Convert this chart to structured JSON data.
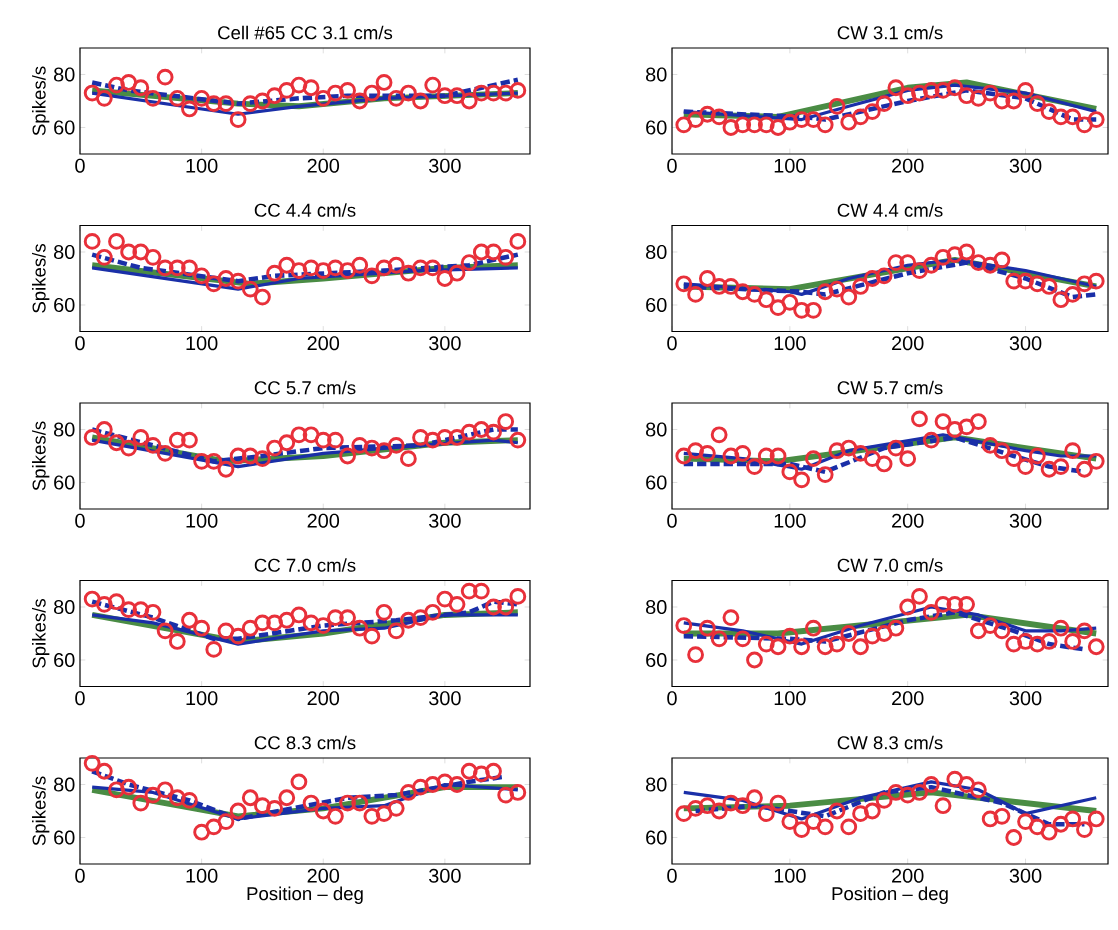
{
  "chart_data": [
    {
      "type": "line",
      "title": "Cell #65 CC 3.1 cm/s",
      "ylabel": "Spikes/s",
      "xlim": [
        0,
        370
      ],
      "ylim": [
        50,
        90
      ],
      "xticks": [
        0,
        100,
        200,
        300
      ],
      "yticks": [
        60,
        80
      ],
      "x": [
        10,
        20,
        30,
        40,
        50,
        60,
        70,
        80,
        90,
        100,
        110,
        120,
        130,
        140,
        150,
        160,
        170,
        180,
        190,
        200,
        210,
        220,
        230,
        240,
        250,
        260,
        270,
        280,
        290,
        300,
        310,
        320,
        330,
        340,
        350,
        360
      ],
      "series": [
        {
          "type": "scatter",
          "marker": "circle",
          "color": "#e8303a",
          "values": [
            73,
            71,
            76,
            77,
            75,
            71,
            79,
            71,
            67,
            71,
            69,
            69,
            63,
            69,
            70,
            72,
            74,
            76,
            75,
            71,
            73,
            74,
            70,
            73,
            77,
            71,
            73,
            70,
            76,
            72,
            72,
            70,
            73,
            73,
            73,
            74
          ]
        },
        {
          "type": "line",
          "line_style": "solid",
          "color": "#4a8c44",
          "x": [
            10,
            130,
            180,
            250,
            360
          ],
          "values": [
            74,
            69,
            68,
            71,
            73
          ]
        },
        {
          "type": "line",
          "line_style": "dashed",
          "color": "#1a2fa8",
          "x": [
            10,
            40,
            130,
            180,
            220,
            300,
            360
          ],
          "values": [
            77,
            74,
            69,
            71,
            72,
            72,
            78
          ]
        },
        {
          "type": "line",
          "line_style": "solid",
          "color": "#1a2fa8",
          "x": [
            10,
            130,
            180,
            250,
            360
          ],
          "values": [
            73,
            65,
            68,
            71,
            73
          ]
        }
      ]
    },
    {
      "type": "line",
      "title": "CW 3.1 cm/s",
      "xlim": [
        0,
        370
      ],
      "ylim": [
        50,
        90
      ],
      "xticks": [
        0,
        100,
        200,
        300
      ],
      "yticks": [
        60,
        80
      ],
      "x": [
        10,
        20,
        30,
        40,
        50,
        60,
        70,
        80,
        90,
        100,
        110,
        120,
        130,
        140,
        150,
        160,
        170,
        180,
        190,
        200,
        210,
        220,
        230,
        240,
        250,
        260,
        270,
        280,
        290,
        300,
        310,
        320,
        330,
        340,
        350,
        360
      ],
      "series": [
        {
          "type": "scatter",
          "marker": "circle",
          "color": "#e8303a",
          "values": [
            61,
            63,
            65,
            64,
            60,
            61,
            61,
            61,
            60,
            62,
            63,
            63,
            61,
            68,
            62,
            64,
            66,
            69,
            75,
            72,
            73,
            74,
            74,
            75,
            72,
            71,
            73,
            70,
            70,
            74,
            69,
            66,
            64,
            64,
            61,
            63
          ]
        },
        {
          "type": "line",
          "line_style": "solid",
          "color": "#4a8c44",
          "x": [
            10,
            90,
            200,
            250,
            360
          ],
          "values": [
            65,
            64,
            75,
            77,
            67
          ]
        },
        {
          "type": "line",
          "line_style": "dashed",
          "color": "#1a2fa8",
          "x": [
            10,
            110,
            130,
            200,
            250,
            300,
            340,
            360
          ],
          "values": [
            66,
            64,
            63,
            70,
            74,
            71,
            63,
            63
          ]
        },
        {
          "type": "line",
          "line_style": "solid",
          "color": "#1a2fa8",
          "x": [
            10,
            110,
            150,
            200,
            240,
            300,
            360
          ],
          "values": [
            66,
            63,
            68,
            74,
            76,
            73,
            66
          ]
        }
      ]
    },
    {
      "type": "line",
      "title": "CC 4.4 cm/s",
      "ylabel": "Spikes/s",
      "xlim": [
        0,
        370
      ],
      "ylim": [
        50,
        90
      ],
      "xticks": [
        0,
        100,
        200,
        300
      ],
      "yticks": [
        60,
        80
      ],
      "x": [
        10,
        20,
        30,
        40,
        50,
        60,
        70,
        80,
        90,
        100,
        110,
        120,
        130,
        140,
        150,
        160,
        170,
        180,
        190,
        200,
        210,
        220,
        230,
        240,
        250,
        260,
        270,
        280,
        290,
        300,
        310,
        320,
        330,
        340,
        350,
        360
      ],
      "series": [
        {
          "type": "scatter",
          "marker": "circle",
          "color": "#e8303a",
          "values": [
            84,
            78,
            84,
            80,
            80,
            78,
            74,
            74,
            74,
            71,
            68,
            70,
            69,
            66,
            63,
            72,
            75,
            73,
            74,
            73,
            74,
            73,
            75,
            71,
            74,
            75,
            72,
            74,
            74,
            70,
            72,
            76,
            80,
            80,
            78,
            84
          ]
        },
        {
          "type": "line",
          "line_style": "solid",
          "color": "#4a8c44",
          "x": [
            10,
            140,
            200,
            300,
            360
          ],
          "values": [
            75,
            68,
            70,
            74,
            75
          ]
        },
        {
          "type": "line",
          "line_style": "dashed",
          "color": "#1a2fa8",
          "x": [
            10,
            50,
            130,
            160,
            250,
            320,
            360
          ],
          "values": [
            79,
            74,
            69,
            71,
            73,
            75,
            79
          ]
        },
        {
          "type": "line",
          "line_style": "solid",
          "color": "#1a2fa8",
          "x": [
            10,
            130,
            180,
            280,
            360
          ],
          "values": [
            74,
            66,
            70,
            73,
            74
          ]
        }
      ]
    },
    {
      "type": "line",
      "title": "CW 4.4 cm/s",
      "xlim": [
        0,
        370
      ],
      "ylim": [
        50,
        90
      ],
      "xticks": [
        0,
        100,
        200,
        300
      ],
      "yticks": [
        60,
        80
      ],
      "x": [
        10,
        20,
        30,
        40,
        50,
        60,
        70,
        80,
        90,
        100,
        110,
        120,
        130,
        140,
        150,
        160,
        170,
        180,
        190,
        200,
        210,
        220,
        230,
        240,
        250,
        260,
        270,
        280,
        290,
        300,
        310,
        320,
        330,
        340,
        350,
        360
      ],
      "series": [
        {
          "type": "scatter",
          "marker": "circle",
          "color": "#e8303a",
          "values": [
            68,
            64,
            70,
            67,
            67,
            65,
            64,
            62,
            59,
            61,
            58,
            58,
            65,
            66,
            63,
            67,
            70,
            71,
            76,
            76,
            73,
            75,
            78,
            79,
            80,
            76,
            75,
            77,
            69,
            69,
            68,
            67,
            62,
            64,
            68,
            69
          ]
        },
        {
          "type": "line",
          "line_style": "solid",
          "color": "#4a8c44",
          "x": [
            10,
            100,
            240,
            360
          ],
          "values": [
            67,
            66,
            77,
            67
          ]
        },
        {
          "type": "line",
          "line_style": "dashed",
          "color": "#1a2fa8",
          "x": [
            10,
            110,
            130,
            200,
            250,
            300,
            340,
            360
          ],
          "values": [
            67,
            65,
            64,
            72,
            76,
            70,
            63,
            64
          ]
        },
        {
          "type": "line",
          "line_style": "solid",
          "color": "#1a2fa8",
          "x": [
            10,
            100,
            110,
            150,
            200,
            240,
            300,
            360
          ],
          "values": [
            68,
            65,
            64,
            70,
            75,
            77,
            73,
            67
          ]
        }
      ]
    },
    {
      "type": "line",
      "title": "CC 5.7 cm/s",
      "ylabel": "Spikes/s",
      "xlim": [
        0,
        370
      ],
      "ylim": [
        50,
        90
      ],
      "xticks": [
        0,
        100,
        200,
        300
      ],
      "yticks": [
        60,
        80
      ],
      "x": [
        10,
        20,
        30,
        40,
        50,
        60,
        70,
        80,
        90,
        100,
        110,
        120,
        130,
        140,
        150,
        160,
        170,
        180,
        190,
        200,
        210,
        220,
        230,
        240,
        250,
        260,
        270,
        280,
        290,
        300,
        310,
        320,
        330,
        340,
        350,
        360
      ],
      "series": [
        {
          "type": "scatter",
          "marker": "circle",
          "color": "#e8303a",
          "values": [
            77,
            80,
            75,
            73,
            77,
            74,
            71,
            76,
            76,
            68,
            68,
            65,
            70,
            70,
            69,
            73,
            75,
            78,
            78,
            76,
            76,
            70,
            74,
            73,
            72,
            74,
            69,
            77,
            76,
            77,
            77,
            79,
            80,
            79,
            83,
            76
          ]
        },
        {
          "type": "line",
          "line_style": "solid",
          "color": "#4a8c44",
          "x": [
            10,
            120,
            200,
            300,
            360
          ],
          "values": [
            77,
            68,
            70,
            75,
            76
          ]
        },
        {
          "type": "line",
          "line_style": "dashed",
          "color": "#1a2fa8",
          "x": [
            10,
            60,
            110,
            150,
            200,
            280,
            340,
            360
          ],
          "values": [
            80,
            74,
            68,
            70,
            73,
            74,
            80,
            80
          ]
        },
        {
          "type": "line",
          "line_style": "solid",
          "color": "#1a2fa8",
          "x": [
            10,
            130,
            200,
            280,
            340,
            360
          ],
          "values": [
            76,
            66,
            71,
            74,
            76,
            75
          ]
        }
      ]
    },
    {
      "type": "line",
      "title": "CW 5.7 cm/s",
      "xlim": [
        0,
        370
      ],
      "ylim": [
        50,
        90
      ],
      "xticks": [
        0,
        100,
        200,
        300
      ],
      "yticks": [
        60,
        80
      ],
      "x": [
        10,
        20,
        30,
        40,
        50,
        60,
        70,
        80,
        90,
        100,
        110,
        120,
        130,
        140,
        150,
        160,
        170,
        180,
        190,
        200,
        210,
        220,
        230,
        240,
        250,
        260,
        270,
        280,
        290,
        300,
        310,
        320,
        330,
        340,
        350,
        360
      ],
      "series": [
        {
          "type": "scatter",
          "marker": "circle",
          "color": "#e8303a",
          "values": [
            70,
            72,
            71,
            78,
            70,
            71,
            66,
            70,
            70,
            64,
            61,
            69,
            63,
            72,
            73,
            71,
            69,
            67,
            73,
            69,
            84,
            76,
            83,
            80,
            81,
            83,
            74,
            72,
            69,
            66,
            70,
            65,
            66,
            72,
            65,
            68
          ]
        },
        {
          "type": "line",
          "line_style": "solid",
          "color": "#4a8c44",
          "x": [
            10,
            90,
            240,
            360
          ],
          "values": [
            69,
            68,
            77,
            69
          ]
        },
        {
          "type": "line",
          "line_style": "dashed",
          "color": "#1a2fa8",
          "x": [
            10,
            100,
            130,
            180,
            240,
            290,
            320,
            350
          ],
          "values": [
            67,
            67,
            64,
            73,
            77,
            70,
            66,
            64
          ]
        },
        {
          "type": "line",
          "line_style": "solid",
          "color": "#1a2fa8",
          "x": [
            10,
            60,
            110,
            150,
            230,
            300,
            330,
            360
          ],
          "values": [
            71,
            69,
            65,
            72,
            78,
            72,
            70,
            70
          ]
        }
      ]
    },
    {
      "type": "line",
      "title": "CC 7.0 cm/s",
      "ylabel": "Spikes/s",
      "xlim": [
        0,
        370
      ],
      "ylim": [
        50,
        90
      ],
      "xticks": [
        0,
        100,
        200,
        300
      ],
      "yticks": [
        60,
        80
      ],
      "x": [
        10,
        20,
        30,
        40,
        50,
        60,
        70,
        80,
        90,
        100,
        110,
        120,
        130,
        140,
        150,
        160,
        170,
        180,
        190,
        200,
        210,
        220,
        230,
        240,
        250,
        260,
        270,
        280,
        290,
        300,
        310,
        320,
        330,
        340,
        350,
        360
      ],
      "series": [
        {
          "type": "scatter",
          "marker": "circle",
          "color": "#e8303a",
          "values": [
            83,
            81,
            82,
            79,
            79,
            78,
            71,
            67,
            75,
            72,
            64,
            71,
            69,
            72,
            74,
            74,
            75,
            77,
            74,
            73,
            76,
            76,
            72,
            69,
            78,
            71,
            75,
            76,
            78,
            83,
            81,
            86,
            86,
            80,
            80,
            84
          ]
        },
        {
          "type": "line",
          "line_style": "solid",
          "color": "#4a8c44",
          "x": [
            10,
            130,
            200,
            300,
            360
          ],
          "values": [
            77,
            67,
            70,
            77,
            78
          ]
        },
        {
          "type": "line",
          "line_style": "dashed",
          "color": "#1a2fa8",
          "x": [
            10,
            60,
            110,
            130,
            200,
            260,
            320,
            340,
            360
          ],
          "values": [
            82,
            76,
            68,
            68,
            73,
            75,
            78,
            82,
            81
          ]
        },
        {
          "type": "line",
          "line_style": "solid",
          "color": "#1a2fa8",
          "x": [
            10,
            60,
            130,
            200,
            250,
            300,
            360
          ],
          "values": [
            77,
            74,
            66,
            71,
            72,
            77,
            77
          ]
        }
      ]
    },
    {
      "type": "line",
      "title": "CW 7.0 cm/s",
      "xlim": [
        0,
        370
      ],
      "ylim": [
        50,
        90
      ],
      "xticks": [
        0,
        100,
        200,
        300
      ],
      "yticks": [
        60,
        80
      ],
      "x": [
        10,
        20,
        30,
        40,
        50,
        60,
        70,
        80,
        90,
        100,
        110,
        120,
        130,
        140,
        150,
        160,
        170,
        180,
        190,
        200,
        210,
        220,
        230,
        240,
        250,
        260,
        270,
        280,
        290,
        300,
        310,
        320,
        330,
        340,
        350,
        360
      ],
      "series": [
        {
          "type": "scatter",
          "marker": "circle",
          "color": "#e8303a",
          "values": [
            73,
            62,
            72,
            68,
            76,
            68,
            60,
            66,
            65,
            69,
            65,
            72,
            65,
            66,
            70,
            65,
            69,
            70,
            72,
            80,
            84,
            78,
            81,
            81,
            81,
            71,
            73,
            71,
            66,
            67,
            66,
            67,
            72,
            67,
            71,
            65
          ]
        },
        {
          "type": "line",
          "line_style": "solid",
          "color": "#4a8c44",
          "x": [
            10,
            90,
            250,
            360
          ],
          "values": [
            70,
            70,
            77,
            70
          ]
        },
        {
          "type": "line",
          "line_style": "dashed",
          "color": "#1a2fa8",
          "x": [
            10,
            100,
            130,
            200,
            240,
            290,
            320,
            350
          ],
          "values": [
            69,
            68,
            67,
            75,
            78,
            71,
            66,
            64
          ]
        },
        {
          "type": "line",
          "line_style": "solid",
          "color": "#1a2fa8",
          "x": [
            10,
            60,
            110,
            160,
            220,
            260,
            300,
            330,
            360
          ],
          "values": [
            74,
            71,
            66,
            73,
            80,
            77,
            71,
            71,
            72
          ]
        }
      ]
    },
    {
      "type": "line",
      "title": "CC 8.3 cm/s",
      "ylabel": "Spikes/s",
      "xlabel": "Position – deg",
      "xlim": [
        0,
        370
      ],
      "ylim": [
        50,
        90
      ],
      "xticks": [
        0,
        100,
        200,
        300
      ],
      "yticks": [
        60,
        80
      ],
      "x": [
        10,
        20,
        30,
        40,
        50,
        60,
        70,
        80,
        90,
        100,
        110,
        120,
        130,
        140,
        150,
        160,
        170,
        180,
        190,
        200,
        210,
        220,
        230,
        240,
        250,
        260,
        270,
        280,
        290,
        300,
        310,
        320,
        330,
        340,
        350,
        360
      ],
      "series": [
        {
          "type": "scatter",
          "marker": "circle",
          "color": "#e8303a",
          "values": [
            88,
            85,
            78,
            79,
            73,
            76,
            78,
            75,
            74,
            62,
            64,
            66,
            70,
            75,
            72,
            71,
            75,
            81,
            73,
            70,
            68,
            73,
            73,
            68,
            69,
            71,
            77,
            79,
            80,
            81,
            80,
            85,
            84,
            85,
            76,
            77
          ]
        },
        {
          "type": "line",
          "line_style": "solid",
          "color": "#4a8c44",
          "x": [
            10,
            130,
            200,
            300,
            360
          ],
          "values": [
            78,
            68,
            71,
            79,
            79
          ]
        },
        {
          "type": "line",
          "line_style": "dashed",
          "color": "#1a2fa8",
          "x": [
            10,
            40,
            90,
            130,
            220,
            260,
            320,
            350
          ],
          "values": [
            85,
            80,
            74,
            67,
            75,
            76,
            81,
            83
          ]
        },
        {
          "type": "line",
          "line_style": "solid",
          "color": "#1a2fa8",
          "x": [
            10,
            60,
            130,
            200,
            250,
            300,
            360
          ],
          "values": [
            79,
            77,
            67,
            71,
            72,
            80,
            78
          ]
        }
      ]
    },
    {
      "type": "line",
      "title": "CW 8.3 cm/s",
      "xlabel": "Position – deg",
      "xlim": [
        0,
        370
      ],
      "ylim": [
        50,
        90
      ],
      "xticks": [
        0,
        100,
        200,
        300
      ],
      "yticks": [
        60,
        80
      ],
      "x": [
        10,
        20,
        30,
        40,
        50,
        60,
        70,
        80,
        90,
        100,
        110,
        120,
        130,
        140,
        150,
        160,
        170,
        180,
        190,
        200,
        210,
        220,
        230,
        240,
        250,
        260,
        270,
        280,
        290,
        300,
        310,
        320,
        330,
        340,
        350,
        360
      ],
      "series": [
        {
          "type": "scatter",
          "marker": "circle",
          "color": "#e8303a",
          "values": [
            69,
            71,
            72,
            70,
            73,
            72,
            75,
            69,
            73,
            66,
            63,
            66,
            64,
            70,
            64,
            69,
            70,
            74,
            77,
            76,
            77,
            80,
            72,
            82,
            80,
            78,
            67,
            68,
            60,
            66,
            64,
            62,
            65,
            67,
            63,
            67
          ]
        },
        {
          "type": "line",
          "line_style": "solid",
          "color": "#4a8c44",
          "x": [
            10,
            100,
            220,
            360
          ],
          "values": [
            71,
            72,
            77,
            70
          ]
        },
        {
          "type": "line",
          "line_style": "dashed",
          "color": "#1a2fa8",
          "x": [
            20,
            70,
            130,
            180,
            220,
            280,
            320,
            350
          ],
          "values": [
            70,
            72,
            68,
            77,
            79,
            73,
            65,
            65
          ]
        },
        {
          "type": "line",
          "line_style": "solid",
          "color": "#1a2fa8",
          "x": [
            10,
            60,
            110,
            160,
            220,
            260,
            300,
            360
          ],
          "values": [
            77,
            74,
            67,
            75,
            81,
            78,
            69,
            75
          ]
        }
      ]
    }
  ]
}
